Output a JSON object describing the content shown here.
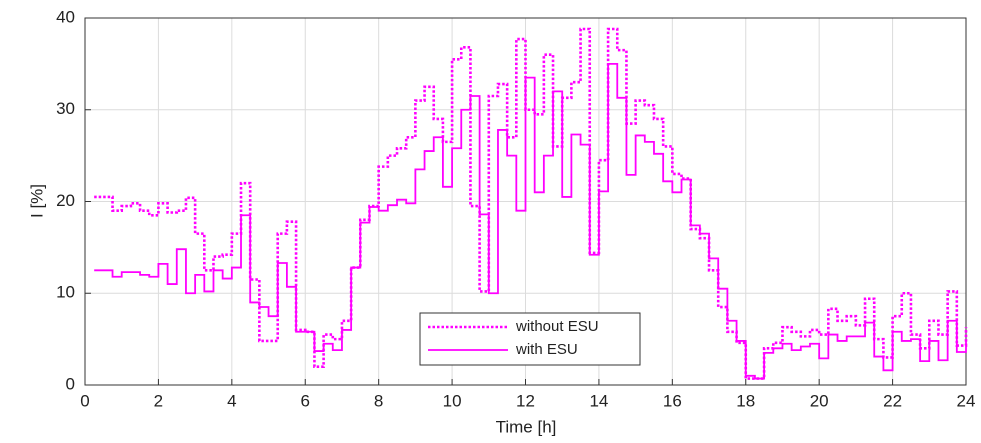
{
  "chart_data": {
    "type": "line",
    "step": true,
    "xlabel": "Time [h]",
    "ylabel": "I [%]",
    "xlim": [
      0,
      24
    ],
    "xticks": [
      0,
      2,
      4,
      6,
      8,
      10,
      12,
      14,
      16,
      18,
      20,
      22,
      24
    ],
    "ylim": [
      0,
      40
    ],
    "yticks": [
      0,
      10,
      20,
      30,
      40
    ],
    "grid": true,
    "legend": "lower center",
    "x": [
      0.25,
      0.5,
      0.75,
      1,
      1.25,
      1.5,
      1.75,
      2,
      2.25,
      2.5,
      2.75,
      3,
      3.25,
      3.5,
      3.75,
      4,
      4.25,
      4.5,
      4.75,
      5,
      5.25,
      5.5,
      5.75,
      6,
      6.25,
      6.5,
      6.75,
      7,
      7.25,
      7.5,
      7.75,
      8,
      8.25,
      8.5,
      8.75,
      9,
      9.25,
      9.5,
      9.75,
      10,
      10.25,
      10.5,
      10.75,
      11,
      11.25,
      11.5,
      11.75,
      12,
      12.25,
      12.5,
      12.75,
      13,
      13.25,
      13.5,
      13.75,
      14,
      14.25,
      14.5,
      14.75,
      15,
      15.25,
      15.5,
      15.75,
      16,
      16.25,
      16.5,
      16.75,
      17,
      17.25,
      17.5,
      17.75,
      18,
      18.25,
      18.5,
      18.75,
      19,
      19.25,
      19.5,
      19.75,
      20,
      20.25,
      20.5,
      20.75,
      21,
      21.25,
      21.5,
      21.75,
      22,
      22.25,
      22.5,
      22.75,
      23,
      23.25,
      23.5,
      23.75,
      24
    ],
    "series": [
      {
        "name": "without ESU",
        "color": "#ff00ff",
        "dash": true,
        "values": [
          20.5,
          20.5,
          19.0,
          19.5,
          19.8,
          19.0,
          18.5,
          19.8,
          18.8,
          19.0,
          20.4,
          16.5,
          12.5,
          14.0,
          14.2,
          16.5,
          22.0,
          11.5,
          4.8,
          4.8,
          16.5,
          17.8,
          6.0,
          5.8,
          2.0,
          5.5,
          5.0,
          7.0,
          12.8,
          18.0,
          19.5,
          23.8,
          25.0,
          25.8,
          27.0,
          31.0,
          32.5,
          29.0,
          26.5,
          35.5,
          36.8,
          19.5,
          10.2,
          31.5,
          32.8,
          27.0,
          37.7,
          30.0,
          29.5,
          36.0,
          26.0,
          31.3,
          33.0,
          38.8,
          14.4,
          24.5,
          38.8,
          36.5,
          28.5,
          31.0,
          30.5,
          29.0,
          26.0,
          23.0,
          22.5,
          17.0,
          16.0,
          12.5,
          8.5,
          5.8,
          4.6,
          0.7,
          0.7,
          4.0,
          4.6,
          6.3,
          5.8,
          5.3,
          6.0,
          5.5,
          8.3,
          7.0,
          7.5,
          6.5,
          9.4,
          5.0,
          3.0,
          7.5,
          10.0,
          5.5,
          4.0,
          7.0,
          5.5,
          10.2,
          4.3,
          6.3
        ]
      },
      {
        "name": "with ESU",
        "color": "#ff00ff",
        "dash": false,
        "values": [
          12.5,
          12.5,
          11.8,
          12.3,
          12.3,
          12.0,
          11.8,
          13.2,
          11.0,
          14.8,
          10.0,
          12.0,
          10.2,
          12.5,
          11.6,
          12.8,
          18.5,
          9.0,
          8.5,
          7.5,
          13.3,
          10.7,
          5.8,
          5.8,
          3.7,
          4.5,
          3.8,
          6.0,
          12.8,
          17.7,
          19.4,
          19.0,
          19.6,
          20.2,
          19.8,
          23.5,
          25.5,
          27.0,
          21.6,
          25.8,
          30.0,
          31.5,
          18.6,
          10.0,
          27.8,
          25.0,
          19.0,
          33.5,
          21.0,
          25.0,
          32.0,
          20.5,
          27.3,
          26.2,
          14.2,
          21.1,
          35.0,
          31.3,
          22.9,
          27.2,
          26.5,
          25.2,
          22.2,
          21.0,
          22.4,
          17.4,
          16.5,
          13.8,
          10.5,
          7.0,
          4.8,
          1.0,
          0.7,
          3.5,
          4.0,
          4.5,
          3.8,
          4.2,
          4.5,
          2.9,
          5.5,
          4.8,
          5.3,
          5.3,
          6.8,
          3.1,
          1.6,
          5.8,
          4.8,
          5.0,
          2.6,
          4.8,
          2.7,
          7.0,
          3.6,
          4.8
        ]
      }
    ]
  }
}
